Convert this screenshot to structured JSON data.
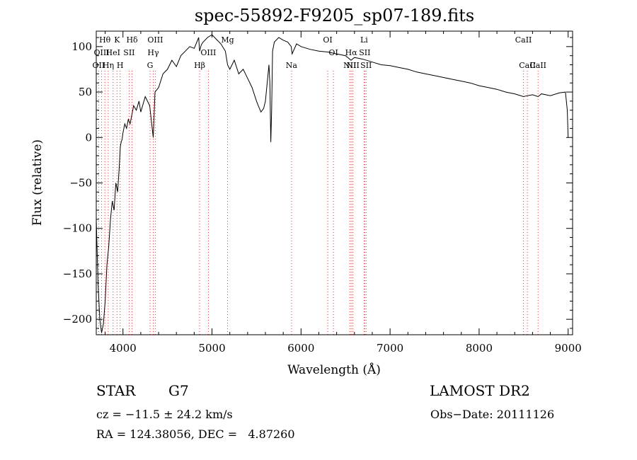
{
  "chart_data": {
    "type": "line",
    "title": "spec-55892-F9205_sp07-189.fits",
    "xlabel": "Wavelength (Å)",
    "ylabel": "Flux (relative)",
    "xlim": [
      3700,
      9050
    ],
    "ylim": [
      -217,
      117
    ],
    "xticks": [
      4000,
      5000,
      6000,
      7000,
      8000,
      9000
    ],
    "yticks": [
      -200,
      -150,
      -100,
      -50,
      0,
      50,
      100
    ],
    "grid": false,
    "line_color": "#000000",
    "marker_color": "#d04040",
    "series": [
      {
        "x": [
          3700,
          3720,
          3740,
          3760,
          3780,
          3800,
          3820,
          3840,
          3860,
          3880,
          3900,
          3920,
          3940,
          3960,
          3970,
          3980,
          3990,
          4000,
          4020,
          4040,
          4060,
          4080,
          4100,
          4120,
          4150,
          4180,
          4200,
          4250,
          4300,
          4340,
          4360,
          4400,
          4450,
          4500,
          4550,
          4600,
          4650,
          4700,
          4750,
          4800,
          4850,
          4861,
          4880,
          4900,
          4950,
          5000,
          5050,
          5100,
          5150,
          5175,
          5200,
          5250,
          5300,
          5350,
          5400,
          5450,
          5500,
          5520,
          5550,
          5580,
          5600,
          5620,
          5640,
          5650,
          5660,
          5670,
          5680,
          5700,
          5750,
          5800,
          5850,
          5890,
          5900,
          5950,
          6000,
          6100,
          6200,
          6300,
          6400,
          6500,
          6562,
          6600,
          6700,
          6800,
          6900,
          7000,
          7100,
          7200,
          7300,
          7400,
          7500,
          7600,
          7700,
          7800,
          7900,
          8000,
          8100,
          8200,
          8300,
          8400,
          8498,
          8542,
          8600,
          8662,
          8700,
          8800,
          8900,
          8970,
          8990,
          9000
        ],
        "y": [
          -90,
          -160,
          -200,
          -215,
          -205,
          -180,
          -140,
          -120,
          -90,
          -70,
          -80,
          -50,
          -60,
          -30,
          -10,
          -5,
          -2,
          5,
          15,
          10,
          20,
          15,
          25,
          35,
          30,
          40,
          28,
          45,
          35,
          0,
          50,
          55,
          70,
          75,
          85,
          78,
          90,
          95,
          100,
          98,
          110,
          95,
          102,
          105,
          110,
          113,
          108,
          103,
          95,
          80,
          75,
          85,
          70,
          75,
          65,
          55,
          40,
          35,
          28,
          32,
          40,
          60,
          80,
          60,
          -5,
          30,
          95,
          105,
          110,
          107,
          105,
          100,
          92,
          103,
          100,
          97,
          95,
          94,
          92,
          90,
          85,
          88,
          86,
          83,
          80,
          79,
          77,
          75,
          72,
          70,
          68,
          66,
          64,
          62,
          60,
          57,
          55,
          53,
          50,
          48,
          45,
          46,
          47,
          45,
          48,
          46,
          49,
          50,
          30,
          0
        ]
      }
    ],
    "lines": [
      {
        "name": "OII",
        "x": 3727,
        "label_row": 2
      },
      {
        "name": "Hθ",
        "x": 3797,
        "label_row": 0
      },
      {
        "name": "OIII",
        "x": 3760,
        "label_row": 1
      },
      {
        "name": "Hη",
        "x": 3835,
        "label_row": 2
      },
      {
        "name": "HeI",
        "x": 3889,
        "label_row": 1
      },
      {
        "name": "K",
        "x": 3933,
        "label_row": 0
      },
      {
        "name": "H",
        "x": 3968,
        "label_row": 2
      },
      {
        "name": "SII",
        "x": 4069,
        "label_row": 1
      },
      {
        "name": "Hδ",
        "x": 4102,
        "label_row": 0
      },
      {
        "name": "G",
        "x": 4304,
        "label_row": 2
      },
      {
        "name": "Hγ",
        "x": 4340,
        "label_row": 1
      },
      {
        "name": "OIII",
        "x": 4363,
        "label_row": 0
      },
      {
        "name": "Hβ",
        "x": 4861,
        "label_row": 2
      },
      {
        "name": "OIII",
        "x": 4959,
        "label_row": 1
      },
      {
        "name": "Mg",
        "x": 5175,
        "label_row": 0
      },
      {
        "name": "Na",
        "x": 5893,
        "label_row": 2
      },
      {
        "name": "OI",
        "x": 6300,
        "label_row": 0
      },
      {
        "name": "OI",
        "x": 6364,
        "label_row": 1
      },
      {
        "name": "NII",
        "x": 6548,
        "label_row": 2
      },
      {
        "name": "Hα",
        "x": 6563,
        "label_row": 1
      },
      {
        "name": "NII",
        "x": 6583,
        "label_row": 2
      },
      {
        "name": "Li",
        "x": 6708,
        "label_row": 0
      },
      {
        "name": "SII",
        "x": 6716,
        "label_row": 1
      },
      {
        "name": "SII",
        "x": 6731,
        "label_row": 2
      },
      {
        "name": "CaII",
        "x": 8498,
        "label_row": 0
      },
      {
        "name": "CaII",
        "x": 8542,
        "label_row": 2
      },
      {
        "name": "CaII",
        "x": 8662,
        "label_row": 2
      }
    ]
  },
  "info": {
    "object_type": "STAR",
    "spec_class": "G7",
    "survey": "LAMOST DR2",
    "cz": "cz = −11.5 ± 24.2 km/s",
    "obs_date": "Obs−Date: 20111126",
    "radec": "RA = 124.38056, DEC =   4.87260"
  }
}
